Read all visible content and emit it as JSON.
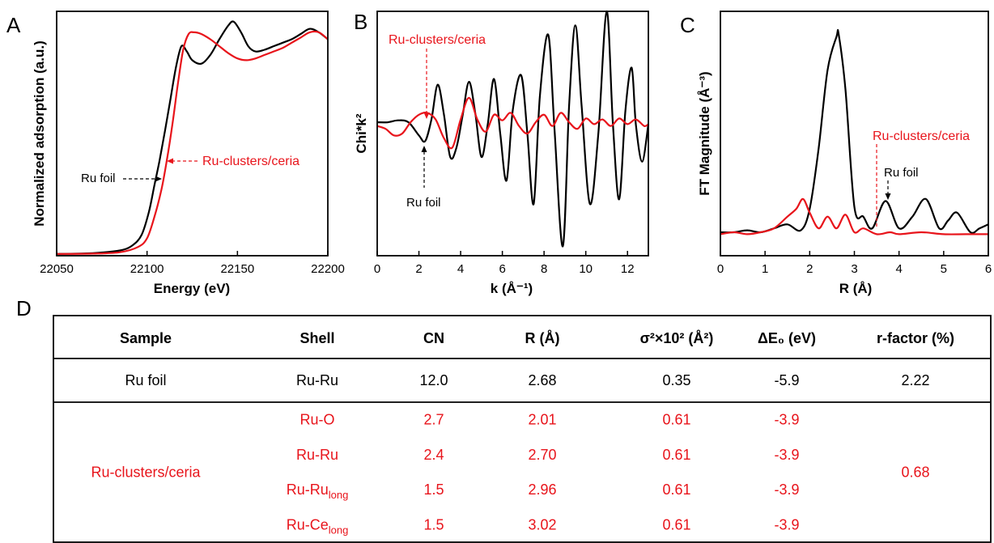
{
  "colors": {
    "ru_foil": "#000000",
    "ru_clusters": "#e8141b"
  },
  "panels": {
    "A": {
      "letter": "A"
    },
    "B": {
      "letter": "B"
    },
    "C": {
      "letter": "C"
    },
    "D": {
      "letter": "D"
    }
  },
  "chart_data": [
    {
      "id": "A",
      "type": "line",
      "title": "",
      "xlabel": "Energy (eV)",
      "ylabel": "Normalized adsorption (a.u.)",
      "xlim": [
        22050,
        22200
      ],
      "ylim": [
        0,
        1.4
      ],
      "xticks": [
        22050,
        22100,
        22150,
        22200
      ],
      "yticks": [],
      "annotations": [
        {
          "text": "Ru foil",
          "series": "Ru foil",
          "x": 22108,
          "y": 0.46
        },
        {
          "text": "Ru-clusters/ceria",
          "series": "Ru-clusters/ceria",
          "x": 22111,
          "y": 0.47
        }
      ],
      "series": [
        {
          "name": "Ru foil",
          "color": "#000000",
          "x": [
            22050,
            22070,
            22085,
            22092,
            22097,
            22101,
            22104,
            22107,
            22110,
            22113,
            22116,
            22119,
            22122,
            22125,
            22130,
            22135,
            22140,
            22145,
            22148,
            22152,
            22156,
            22160,
            22165,
            22170,
            22175,
            22180,
            22185,
            22190,
            22195,
            22200
          ],
          "y": [
            0.01,
            0.015,
            0.03,
            0.06,
            0.12,
            0.25,
            0.4,
            0.55,
            0.72,
            0.9,
            1.08,
            1.2,
            1.17,
            1.12,
            1.1,
            1.15,
            1.24,
            1.32,
            1.34,
            1.28,
            1.2,
            1.17,
            1.18,
            1.2,
            1.22,
            1.24,
            1.27,
            1.3,
            1.28,
            1.24
          ]
        },
        {
          "name": "Ru-clusters/ceria",
          "color": "#e8141b",
          "x": [
            22050,
            22070,
            22085,
            22095,
            22100,
            22104,
            22108,
            22111,
            22114,
            22117,
            22120,
            22123,
            22126,
            22130,
            22135,
            22140,
            22145,
            22150,
            22155,
            22160,
            22165,
            22170,
            22175,
            22180,
            22185,
            22190,
            22195,
            22200
          ],
          "y": [
            0.01,
            0.012,
            0.02,
            0.05,
            0.1,
            0.22,
            0.38,
            0.55,
            0.75,
            0.98,
            1.18,
            1.27,
            1.28,
            1.27,
            1.24,
            1.2,
            1.16,
            1.13,
            1.12,
            1.13,
            1.15,
            1.17,
            1.19,
            1.22,
            1.25,
            1.28,
            1.28,
            1.24
          ]
        }
      ]
    },
    {
      "id": "B",
      "type": "line",
      "title": "",
      "xlabel": "k (Å⁻¹)",
      "ylabel": "Chi*k²",
      "xlim": [
        0,
        13
      ],
      "ylim": [
        -1.4,
        1.2
      ],
      "xticks": [
        0,
        2,
        4,
        6,
        8,
        10,
        12
      ],
      "yticks": [],
      "annotations": [
        {
          "text": "Ru-clusters/ceria",
          "series": "Ru-clusters/ceria",
          "x": 2.3,
          "y": 0.2
        },
        {
          "text": "Ru foil",
          "series": "Ru foil",
          "x": 2.3,
          "y": -0.15
        }
      ],
      "series": [
        {
          "name": "Ru foil",
          "color": "#000000",
          "x": [
            0,
            0.5,
            1,
            1.5,
            2,
            2.3,
            2.6,
            2.9,
            3.2,
            3.5,
            3.8,
            4.1,
            4.4,
            4.7,
            5,
            5.3,
            5.6,
            5.9,
            6.2,
            6.5,
            6.9,
            7.2,
            7.5,
            7.8,
            8.2,
            8.5,
            8.9,
            9.2,
            9.5,
            9.8,
            10.2,
            10.6,
            11,
            11.3,
            11.6,
            11.9,
            12.2,
            12.4,
            12.7,
            13
          ],
          "y": [
            0.02,
            0.02,
            0.04,
            0.02,
            -0.12,
            -0.18,
            0.05,
            0.42,
            0.1,
            -0.35,
            -0.25,
            0.1,
            0.45,
            0.12,
            -0.35,
            0.0,
            0.48,
            -0.1,
            -0.6,
            0.15,
            0.52,
            -0.1,
            -0.85,
            0.3,
            0.95,
            -0.05,
            -1.3,
            0.2,
            1.05,
            0.2,
            -0.85,
            -0.1,
            1.2,
            0.0,
            -0.8,
            0.15,
            0.6,
            0.0,
            -0.4,
            0.0
          ]
        },
        {
          "name": "Ru-clusters/ceria",
          "color": "#e8141b",
          "x": [
            0,
            0.4,
            0.8,
            1.2,
            1.6,
            2.0,
            2.4,
            2.8,
            3.2,
            3.6,
            4.0,
            4.4,
            4.8,
            5.2,
            5.6,
            6.0,
            6.4,
            6.8,
            7.2,
            7.6,
            8.0,
            8.4,
            8.8,
            9.2,
            9.6,
            10.0,
            10.4,
            10.8,
            11.2,
            11.6,
            12.0,
            12.4,
            12.8,
            13
          ],
          "y": [
            -0.02,
            -0.05,
            -0.12,
            -0.1,
            0.02,
            0.1,
            0.12,
            0.05,
            -0.15,
            -0.25,
            0.05,
            0.28,
            0.05,
            -0.08,
            0.1,
            0.04,
            0.12,
            -0.02,
            -0.1,
            0.02,
            0.1,
            -0.02,
            0.12,
            0.02,
            -0.05,
            0.06,
            0.0,
            0.05,
            -0.02,
            0.06,
            0.0,
            0.05,
            -0.02,
            0.0
          ]
        }
      ]
    },
    {
      "id": "C",
      "type": "line",
      "title": "",
      "xlabel": "R (Å)",
      "ylabel": "FT Magnitude (Å⁻³)",
      "xlim": [
        0,
        6
      ],
      "ylim": [
        -0.1,
        1.15
      ],
      "xticks": [
        0,
        1,
        2,
        3,
        4,
        5,
        6
      ],
      "yticks": [],
      "annotations": [
        {
          "text": "Ru-clusters/ceria",
          "series": "Ru-clusters/ceria",
          "x": 3.5,
          "y": 0.12
        },
        {
          "text": "Ru foil",
          "series": "Ru foil",
          "x": 3.75,
          "y": 0.18
        }
      ],
      "series": [
        {
          "name": "Ru foil",
          "color": "#000000",
          "x": [
            0,
            0.3,
            0.6,
            0.9,
            1.2,
            1.5,
            1.8,
            2.0,
            2.2,
            2.4,
            2.6,
            2.65,
            2.8,
            3.0,
            3.2,
            3.4,
            3.7,
            4.0,
            4.3,
            4.6,
            4.9,
            5.1,
            5.3,
            5.6,
            5.8,
            6.0
          ],
          "y": [
            0.02,
            0.02,
            0.03,
            0.02,
            0.04,
            0.06,
            0.03,
            0.14,
            0.45,
            0.85,
            1.02,
            1.03,
            0.75,
            0.15,
            0.1,
            0.04,
            0.18,
            0.04,
            0.1,
            0.19,
            0.04,
            0.08,
            0.12,
            0.02,
            0.04,
            0.06
          ]
        },
        {
          "name": "Ru-clusters/ceria",
          "color": "#e8141b",
          "x": [
            0,
            0.3,
            0.6,
            0.9,
            1.2,
            1.5,
            1.7,
            1.85,
            2.0,
            2.2,
            2.4,
            2.6,
            2.8,
            3.0,
            3.2,
            3.5,
            3.8,
            4.0,
            4.5,
            5.0,
            5.5,
            6.0
          ],
          "y": [
            0.01,
            0.02,
            0.01,
            0.02,
            0.04,
            0.1,
            0.14,
            0.19,
            0.12,
            0.04,
            0.1,
            0.04,
            0.11,
            0.02,
            0.04,
            0.01,
            0.02,
            0.01,
            0.02,
            0.01,
            0.01,
            0.01
          ]
        }
      ]
    },
    {
      "id": "D",
      "type": "table",
      "columns": [
        "Sample",
        "Shell",
        "CN",
        "R (Å)",
        "σ²×10² (Å²)",
        "ΔE₀ (eV)",
        "r-factor (%)"
      ],
      "rows": [
        {
          "sample": "Ru foil",
          "series": "Ru foil",
          "shells": [
            {
              "shell": "Ru-Ru",
              "shell_sub": "",
              "cn": "12.0",
              "r": "2.68",
              "sigma2": "0.35",
              "de0": "-5.9"
            }
          ],
          "r_factor": "2.22"
        },
        {
          "sample": "Ru-clusters/ceria",
          "series": "Ru-clusters/ceria",
          "shells": [
            {
              "shell": "Ru-O",
              "shell_sub": "",
              "cn": "2.7",
              "r": "2.01",
              "sigma2": "0.61",
              "de0": "-3.9"
            },
            {
              "shell": "Ru-Ru",
              "shell_sub": "",
              "cn": "2.4",
              "r": "2.70",
              "sigma2": "0.61",
              "de0": "-3.9"
            },
            {
              "shell": "Ru-Ru",
              "shell_sub": "long",
              "cn": "1.5",
              "r": "2.96",
              "sigma2": "0.61",
              "de0": "-3.9"
            },
            {
              "shell": "Ru-Ce",
              "shell_sub": "long",
              "cn": "1.5",
              "r": "3.02",
              "sigma2": "0.61",
              "de0": "-3.9"
            }
          ],
          "r_factor": "0.68"
        }
      ]
    }
  ]
}
